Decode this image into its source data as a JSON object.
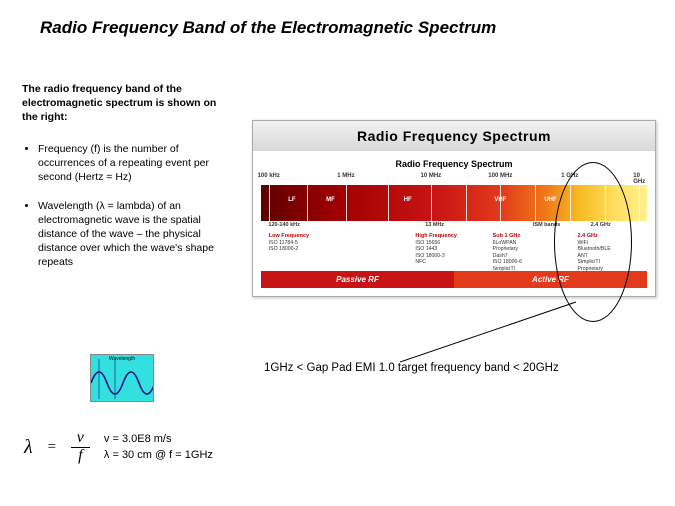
{
  "title": "Radio Frequency Band of the Electromagnetic Spectrum",
  "intro": "The radio frequency band of the electromagnetic spectrum is shown on the right:",
  "bullets": [
    "Frequency (f) is the number  of occurrences of a repeating event per second (Hertz = Hz)",
    "Wavelength (λ = lambda) of an electromagnetic wave is  the spatial distance of the wave – the physical distance over which the wave's shape repeats"
  ],
  "wave_label": "Wavelength",
  "formula": {
    "lhs": "λ",
    "eq": "=",
    "num": "v",
    "den": "f",
    "line1": "v = 3.0E8 m/s",
    "line2": "λ = 30 cm @ f = 1GHz"
  },
  "panel": {
    "title": "Radio Frequency Spectrum",
    "subtitle": "Radio Frequency Spectrum",
    "scale_labels": [
      {
        "pct": 2,
        "text": "100 kHz"
      },
      {
        "pct": 22,
        "text": "1 MHz"
      },
      {
        "pct": 44,
        "text": "10 MHz"
      },
      {
        "pct": 62,
        "text": "100 MHz"
      },
      {
        "pct": 80,
        "text": "1 GHz"
      },
      {
        "pct": 98,
        "text": "10 GHz"
      }
    ],
    "ticks_pct": [
      2,
      12,
      22,
      33,
      44,
      53,
      62,
      71,
      80,
      89,
      98
    ],
    "band_labels": [
      {
        "pct": 8,
        "text": "LF"
      },
      {
        "pct": 18,
        "text": "MF"
      },
      {
        "pct": 38,
        "text": "HF"
      },
      {
        "pct": 62,
        "text": "VHF"
      },
      {
        "pct": 75,
        "text": "UHF"
      }
    ],
    "below_markers": [
      {
        "pct": 6,
        "text": "120-140 kHz"
      },
      {
        "pct": 45,
        "text": "13 MHz"
      },
      {
        "pct": 74,
        "text": "ISM bands"
      },
      {
        "pct": 88,
        "text": "2.4 GHz"
      }
    ],
    "below_cols": [
      {
        "pct": 2,
        "hdr": "Low Frequency",
        "lines": [
          "ISO 11784-5",
          "ISO 18000-2"
        ]
      },
      {
        "pct": 40,
        "hdr": "High Frequency",
        "lines": [
          "ISO 15656",
          "ISO 1443",
          "ISO 18000-3",
          "NFC"
        ]
      },
      {
        "pct": 60,
        "hdr": "Sub 1 GHz",
        "lines": [
          "6LoWPAN",
          "Proprietary",
          "Dash7",
          "ISO 18000-6",
          "SimpliciTI"
        ]
      },
      {
        "pct": 82,
        "hdr": "2.4 GHz",
        "lines": [
          "WiFi",
          "Bluetooth/BLE",
          "ANT",
          "SimpliciTI",
          "Proprietary"
        ]
      }
    ],
    "footer_passive": "Passive RF",
    "footer_active": "Active RF"
  },
  "caption": "1GHz < Gap Pad EMI 1.0 target frequency band < 20GHz",
  "colors": {
    "gradient_stops": [
      "#5a0000",
      "#7a0000",
      "#a00000",
      "#c81414",
      "#e23a1a",
      "#f07a18",
      "#f7b820",
      "#ffe060",
      "#fff090"
    ],
    "hdr_red": "#c00000",
    "wave_bg": "#33e0e0"
  }
}
